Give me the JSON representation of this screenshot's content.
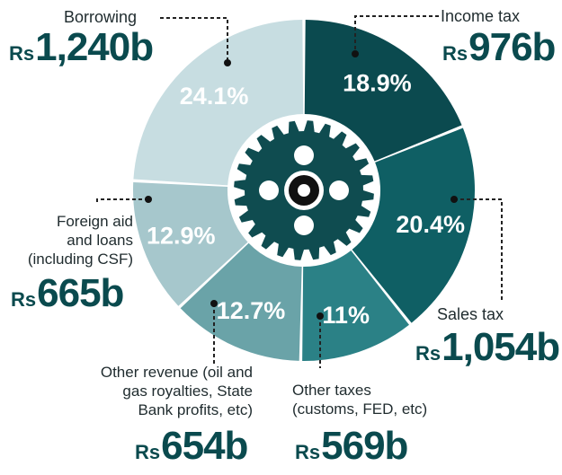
{
  "colors": {
    "borrowing": "#c7dde1",
    "income_tax": "#0b4a4f",
    "sales_tax": "#0f5f64",
    "other_taxes": "#2b8186",
    "other_revenue": "#6aa3a8",
    "foreign_aid": "#a6c7cc",
    "gear": "#0f4c50",
    "value_text": "#0a4a4e",
    "label_text": "#1f2b2e"
  },
  "currency_prefix": "Rs",
  "chart_data": {
    "type": "pie",
    "style": "donut",
    "slices": [
      {
        "key": "income_tax",
        "label": "Income tax",
        "percent": 18.9,
        "percent_label": "18.9%",
        "amount": "976b"
      },
      {
        "key": "sales_tax",
        "label": "Sales tax",
        "percent": 20.4,
        "percent_label": "20.4%",
        "amount": "1,054b"
      },
      {
        "key": "other_taxes",
        "label": "Other taxes (customs, FED, etc)",
        "percent": 11,
        "percent_label": "11%",
        "amount": "569b"
      },
      {
        "key": "other_revenue",
        "label": "Other revenue (oil and gas royalties, State Bank profits, etc)",
        "percent": 12.7,
        "percent_label": "12.7%",
        "amount": "654b"
      },
      {
        "key": "foreign_aid",
        "label": "Foreign aid and loans (including CSF)",
        "percent": 12.9,
        "percent_label": "12.9%",
        "amount": "665b"
      },
      {
        "key": "borrowing",
        "label": "Borrowing",
        "percent": 24.1,
        "percent_label": "24.1%",
        "amount": "1,240b"
      }
    ]
  },
  "labels": {
    "borrowing": {
      "name": "Borrowing",
      "amount": "1,240b"
    },
    "income_tax": {
      "name": "Income tax",
      "amount": "976b"
    },
    "sales_tax": {
      "name": "Sales tax",
      "amount": "1,054b"
    },
    "other_taxes": {
      "line1": "Other taxes",
      "line2": "(customs, FED, etc)",
      "amount": "569b"
    },
    "other_revenue": {
      "line1": "Other revenue (oil and",
      "line2": "gas royalties, State",
      "line3": "Bank profits, etc)",
      "amount": "654b"
    },
    "foreign_aid": {
      "line1": "Foreign aid",
      "line2": "and loans",
      "line3": "(including CSF)",
      "amount": "665b"
    }
  }
}
